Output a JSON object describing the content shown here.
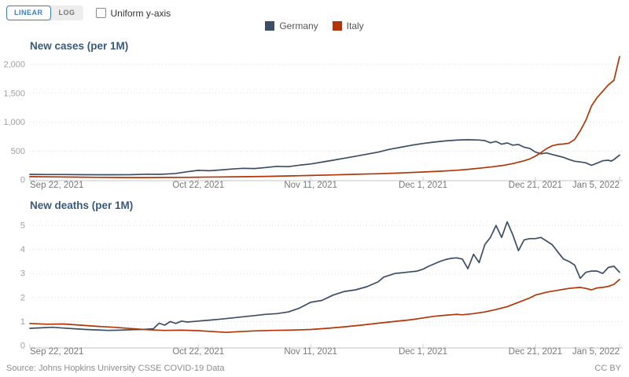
{
  "controls": {
    "linear_label": "LINEAR",
    "log_label": "LOG",
    "uniform_y_axis_label": "Uniform y-axis",
    "uniform_y_axis_checked": false,
    "accent_color": "#3b7cc4"
  },
  "legend": [
    {
      "label": "Germany",
      "color": "#3C4E66"
    },
    {
      "label": "Italy",
      "color": "#B13507"
    }
  ],
  "footer": {
    "source": "Source: Johns Hopkins University CSSE COVID-19 Data",
    "license": "CC BY"
  },
  "chart_data": [
    {
      "type": "line",
      "title": "New cases (per 1M)",
      "x_unit": "days since Sep 22, 2021",
      "x_range": [
        0,
        105
      ],
      "x_ticks": [
        0,
        30,
        50,
        70,
        90,
        105
      ],
      "x_tick_labels": [
        "Sep 22, 2021",
        "Oct 22, 2021",
        "Nov 11, 2021",
        "Dec 1, 2021",
        "Dec 21, 2021",
        "Jan 5, 2022"
      ],
      "ylim": [
        0,
        2000
      ],
      "y_ticks": [
        0,
        500,
        1000,
        1500,
        2000
      ],
      "y_tick_labels": [
        "0",
        "500",
        "1,000",
        "1,500",
        "2,000"
      ],
      "grid": true,
      "legend_position": "top-center",
      "series": [
        {
          "name": "Germany",
          "color": "#3C4E66",
          "points": [
            [
              0,
              95
            ],
            [
              3,
              93
            ],
            [
              6,
              92
            ],
            [
              9,
              90
            ],
            [
              12,
              89
            ],
            [
              15,
              88
            ],
            [
              18,
              90
            ],
            [
              21,
              98
            ],
            [
              23,
              95
            ],
            [
              25,
              105
            ],
            [
              26,
              112
            ],
            [
              28,
              140
            ],
            [
              30,
              165
            ],
            [
              32,
              158
            ],
            [
              34,
              172
            ],
            [
              36,
              188
            ],
            [
              38,
              200
            ],
            [
              40,
              196
            ],
            [
              42,
              214
            ],
            [
              44,
              234
            ],
            [
              46,
              228
            ],
            [
              48,
              254
            ],
            [
              50,
              275
            ],
            [
              52,
              308
            ],
            [
              54,
              340
            ],
            [
              56,
              375
            ],
            [
              58,
              410
            ],
            [
              60,
              445
            ],
            [
              62,
              480
            ],
            [
              64,
              528
            ],
            [
              66,
              565
            ],
            [
              68,
              600
            ],
            [
              70,
              630
            ],
            [
              72,
              655
            ],
            [
              74,
              675
            ],
            [
              76,
              688
            ],
            [
              78,
              695
            ],
            [
              80,
              690
            ],
            [
              81,
              680
            ],
            [
              82,
              642
            ],
            [
              83,
              665
            ],
            [
              84,
              618
            ],
            [
              85,
              640
            ],
            [
              86,
              602
            ],
            [
              87,
              612
            ],
            [
              88,
              566
            ],
            [
              89,
              545
            ],
            [
              90,
              482
            ],
            [
              91,
              452
            ],
            [
              92,
              466
            ],
            [
              93,
              440
            ],
            [
              94,
              415
            ],
            [
              95,
              390
            ],
            [
              96,
              352
            ],
            [
              97,
              322
            ],
            [
              98,
              310
            ],
            [
              99,
              295
            ],
            [
              100,
              252
            ],
            [
              101,
              290
            ],
            [
              102,
              330
            ],
            [
              103,
              340
            ],
            [
              103.5,
              325
            ],
            [
              104,
              352
            ],
            [
              105,
              430
            ]
          ]
        },
        {
          "name": "Italy",
          "color": "#B13507",
          "points": [
            [
              0,
              56
            ],
            [
              4,
              52
            ],
            [
              8,
              48
            ],
            [
              12,
              44
            ],
            [
              16,
              41
            ],
            [
              20,
              40
            ],
            [
              24,
              42
            ],
            [
              28,
              44
            ],
            [
              30,
              46
            ],
            [
              34,
              50
            ],
            [
              38,
              54
            ],
            [
              42,
              60
            ],
            [
              46,
              68
            ],
            [
              50,
              76
            ],
            [
              54,
              86
            ],
            [
              58,
              96
            ],
            [
              62,
              106
            ],
            [
              66,
              120
            ],
            [
              70,
              136
            ],
            [
              73,
              150
            ],
            [
              76,
              166
            ],
            [
              78,
              182
            ],
            [
              80,
              202
            ],
            [
              82,
              222
            ],
            [
              84,
              246
            ],
            [
              86,
              282
            ],
            [
              88,
              330
            ],
            [
              89,
              362
            ],
            [
              90,
              410
            ],
            [
              91,
              472
            ],
            [
              92,
              540
            ],
            [
              93,
              590
            ],
            [
              94,
              614
            ],
            [
              95,
              620
            ],
            [
              96,
              636
            ],
            [
              97,
              700
            ],
            [
              98,
              850
            ],
            [
              99,
              1030
            ],
            [
              100,
              1280
            ],
            [
              101,
              1425
            ],
            [
              102,
              1535
            ],
            [
              103,
              1645
            ],
            [
              104,
              1725
            ],
            [
              105,
              2135
            ]
          ]
        }
      ]
    },
    {
      "type": "line",
      "title": "New deaths (per 1M)",
      "x_unit": "days since Sep 22, 2021",
      "x_range": [
        0,
        105
      ],
      "x_ticks": [
        0,
        30,
        50,
        70,
        90,
        105
      ],
      "x_tick_labels": [
        "Sep 22, 2021",
        "Oct 22, 2021",
        "Nov 11, 2021",
        "Dec 1, 2021",
        "Dec 21, 2021",
        "Jan 5, 2022"
      ],
      "ylim": [
        0,
        5
      ],
      "y_ticks": [
        0,
        1,
        2,
        3,
        4,
        5
      ],
      "y_tick_labels": [
        "0",
        "1",
        "2",
        "3",
        "4",
        "5"
      ],
      "grid": true,
      "legend_position": "top-center",
      "series": [
        {
          "name": "Germany",
          "color": "#3C4E66",
          "points": [
            [
              0,
              0.72
            ],
            [
              2,
              0.74
            ],
            [
              4,
              0.76
            ],
            [
              6,
              0.73
            ],
            [
              8,
              0.7
            ],
            [
              10,
              0.67
            ],
            [
              12,
              0.65
            ],
            [
              14,
              0.63
            ],
            [
              16,
              0.64
            ],
            [
              18,
              0.66
            ],
            [
              20,
              0.67
            ],
            [
              22,
              0.7
            ],
            [
              23,
              0.93
            ],
            [
              24,
              0.85
            ],
            [
              25,
              1.0
            ],
            [
              26,
              0.92
            ],
            [
              27,
              1.02
            ],
            [
              28,
              0.98
            ],
            [
              30,
              1.02
            ],
            [
              32,
              1.06
            ],
            [
              34,
              1.1
            ],
            [
              36,
              1.15
            ],
            [
              38,
              1.2
            ],
            [
              40,
              1.25
            ],
            [
              42,
              1.3
            ],
            [
              44,
              1.33
            ],
            [
              46,
              1.4
            ],
            [
              48,
              1.56
            ],
            [
              50,
              1.8
            ],
            [
              52,
              1.88
            ],
            [
              54,
              2.1
            ],
            [
              56,
              2.25
            ],
            [
              58,
              2.32
            ],
            [
              60,
              2.45
            ],
            [
              62,
              2.65
            ],
            [
              63,
              2.85
            ],
            [
              65,
              3.0
            ],
            [
              67,
              3.05
            ],
            [
              69,
              3.1
            ],
            [
              70,
              3.18
            ],
            [
              71,
              3.3
            ],
            [
              72,
              3.4
            ],
            [
              73,
              3.5
            ],
            [
              74,
              3.58
            ],
            [
              75,
              3.63
            ],
            [
              76,
              3.65
            ],
            [
              77,
              3.6
            ],
            [
              78,
              3.2
            ],
            [
              79,
              3.8
            ],
            [
              80,
              3.45
            ],
            [
              81,
              4.2
            ],
            [
              82,
              4.5
            ],
            [
              83,
              5.0
            ],
            [
              84,
              4.5
            ],
            [
              85,
              5.15
            ],
            [
              86,
              4.6
            ],
            [
              87,
              3.95
            ],
            [
              88,
              4.4
            ],
            [
              89,
              4.45
            ],
            [
              90,
              4.45
            ],
            [
              91,
              4.5
            ],
            [
              92,
              4.35
            ],
            [
              93,
              4.2
            ],
            [
              94,
              3.9
            ],
            [
              95,
              3.6
            ],
            [
              96,
              3.5
            ],
            [
              97,
              3.35
            ],
            [
              98,
              2.8
            ],
            [
              99,
              3.05
            ],
            [
              100,
              3.1
            ],
            [
              101,
              3.1
            ],
            [
              102,
              3.0
            ],
            [
              103,
              3.25
            ],
            [
              104,
              3.3
            ],
            [
              105,
              3.05
            ]
          ]
        },
        {
          "name": "Italy",
          "color": "#B13507",
          "points": [
            [
              0,
              0.92
            ],
            [
              3,
              0.89
            ],
            [
              6,
              0.9
            ],
            [
              9,
              0.85
            ],
            [
              12,
              0.8
            ],
            [
              15,
              0.76
            ],
            [
              18,
              0.71
            ],
            [
              21,
              0.66
            ],
            [
              24,
              0.63
            ],
            [
              27,
              0.64
            ],
            [
              30,
              0.62
            ],
            [
              33,
              0.58
            ],
            [
              35,
              0.55
            ],
            [
              37,
              0.58
            ],
            [
              40,
              0.61
            ],
            [
              43,
              0.63
            ],
            [
              46,
              0.64
            ],
            [
              50,
              0.67
            ],
            [
              53,
              0.72
            ],
            [
              56,
              0.78
            ],
            [
              59,
              0.85
            ],
            [
              62,
              0.93
            ],
            [
              64,
              0.98
            ],
            [
              66,
              1.03
            ],
            [
              68,
              1.08
            ],
            [
              70,
              1.15
            ],
            [
              72,
              1.22
            ],
            [
              74,
              1.26
            ],
            [
              76,
              1.3
            ],
            [
              77,
              1.28
            ],
            [
              79,
              1.33
            ],
            [
              81,
              1.4
            ],
            [
              83,
              1.5
            ],
            [
              85,
              1.62
            ],
            [
              87,
              1.8
            ],
            [
              89,
              1.98
            ],
            [
              90,
              2.1
            ],
            [
              92,
              2.22
            ],
            [
              94,
              2.3
            ],
            [
              96,
              2.38
            ],
            [
              98,
              2.42
            ],
            [
              99,
              2.38
            ],
            [
              100,
              2.32
            ],
            [
              101,
              2.4
            ],
            [
              102,
              2.42
            ],
            [
              103,
              2.46
            ],
            [
              104,
              2.55
            ],
            [
              105,
              2.75
            ]
          ]
        }
      ]
    }
  ]
}
